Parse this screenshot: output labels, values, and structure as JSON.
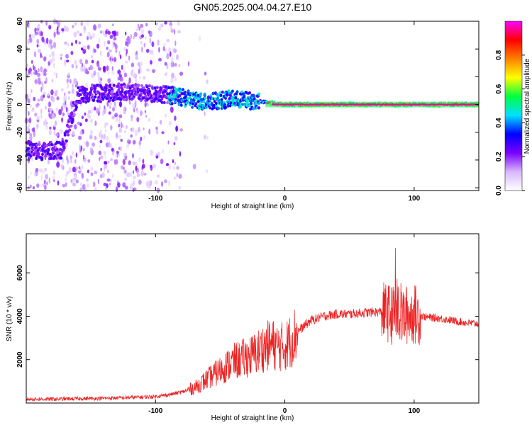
{
  "title": "GN05.2025.004.04.27.E10",
  "chart_data": [
    {
      "type": "heatmap",
      "xlabel": "Height of straight line (km)",
      "ylabel": "Frequency (Hz)",
      "xlim": [
        -200,
        150
      ],
      "ylim": [
        -62,
        60
      ],
      "x_ticks": [
        -100,
        0,
        100
      ],
      "x_tick_labels": [
        "-100",
        "0",
        "100"
      ],
      "y_ticks": [
        -60,
        -40,
        -20,
        0,
        20,
        40,
        60
      ],
      "y_tick_labels": [
        "-60",
        "-40",
        "-20",
        "0",
        "20",
        "40",
        "60"
      ],
      "ridge": [
        {
          "x": -200,
          "y": -32
        },
        {
          "x": -190,
          "y": -34
        },
        {
          "x": -180,
          "y": -33
        },
        {
          "x": -172,
          "y": -33
        },
        {
          "x": -160,
          "y": 7
        },
        {
          "x": -150,
          "y": 8
        },
        {
          "x": -140,
          "y": 8
        },
        {
          "x": -130,
          "y": 9
        },
        {
          "x": -120,
          "y": 9
        },
        {
          "x": -110,
          "y": 8
        },
        {
          "x": -100,
          "y": 8
        },
        {
          "x": -90,
          "y": 7
        },
        {
          "x": -80,
          "y": 5
        },
        {
          "x": -70,
          "y": 3
        },
        {
          "x": -60,
          "y": 2
        },
        {
          "x": -50,
          "y": 3
        },
        {
          "x": -40,
          "y": 4
        },
        {
          "x": -30,
          "y": 3
        },
        {
          "x": -20,
          "y": 2
        },
        {
          "x": -10,
          "y": 1
        },
        {
          "x": 0,
          "y": 0
        },
        {
          "x": 50,
          "y": 0
        },
        {
          "x": 100,
          "y": 0
        },
        {
          "x": 150,
          "y": 0
        }
      ],
      "colorbar": {
        "label": "Normalized spectral amplitude",
        "range": [
          0,
          1
        ],
        "ticks": [
          0,
          0.2,
          0.4,
          0.6,
          0.8
        ],
        "tick_labels": [
          "0.0",
          "0.2",
          "0.4",
          "0.6",
          "0.8"
        ]
      },
      "colors": {
        "colormap": [
          "#ffffff",
          "#d8b8ff",
          "#7b00ff",
          "#0000ff",
          "#00e0ff",
          "#00ff40",
          "#ffff00",
          "#ff8000",
          "#ff0000",
          "#ff00ff"
        ]
      }
    },
    {
      "type": "line",
      "xlabel": "Height of straight line (km)",
      "ylabel": "SNR (10 * v/v)",
      "xlim": [
        -200,
        150
      ],
      "ylim": [
        0,
        7800
      ],
      "x_ticks": [
        -100,
        0,
        100
      ],
      "x_tick_labels": [
        "-100",
        "0",
        "100"
      ],
      "y_ticks": [
        2000,
        4000,
        6000
      ],
      "y_tick_labels": [
        "2000",
        "4000",
        "6000"
      ],
      "series": [
        {
          "color": "#ee2222",
          "x": [
            -200,
            -180,
            -160,
            -140,
            -120,
            -100,
            -90,
            -80,
            -70,
            -65,
            -60,
            -55,
            -50,
            -45,
            -40,
            -35,
            -30,
            -25,
            -20,
            -15,
            -10,
            -5,
            0,
            5,
            10,
            15,
            20,
            25,
            30,
            40,
            50,
            60,
            70,
            75,
            80,
            85,
            88,
            90,
            95,
            100,
            110,
            120,
            130,
            140,
            150
          ],
          "y": [
            180,
            180,
            200,
            220,
            250,
            300,
            380,
            500,
            700,
            900,
            1100,
            1300,
            1500,
            1700,
            1900,
            2000,
            2100,
            2200,
            2400,
            2600,
            2700,
            2600,
            2600,
            2900,
            3300,
            3550,
            3800,
            3900,
            4000,
            4100,
            4100,
            4150,
            4200,
            4200,
            4150,
            4000,
            4100,
            4000,
            4050,
            4100,
            3950,
            3900,
            3800,
            3700,
            3650
          ]
        }
      ]
    }
  ]
}
